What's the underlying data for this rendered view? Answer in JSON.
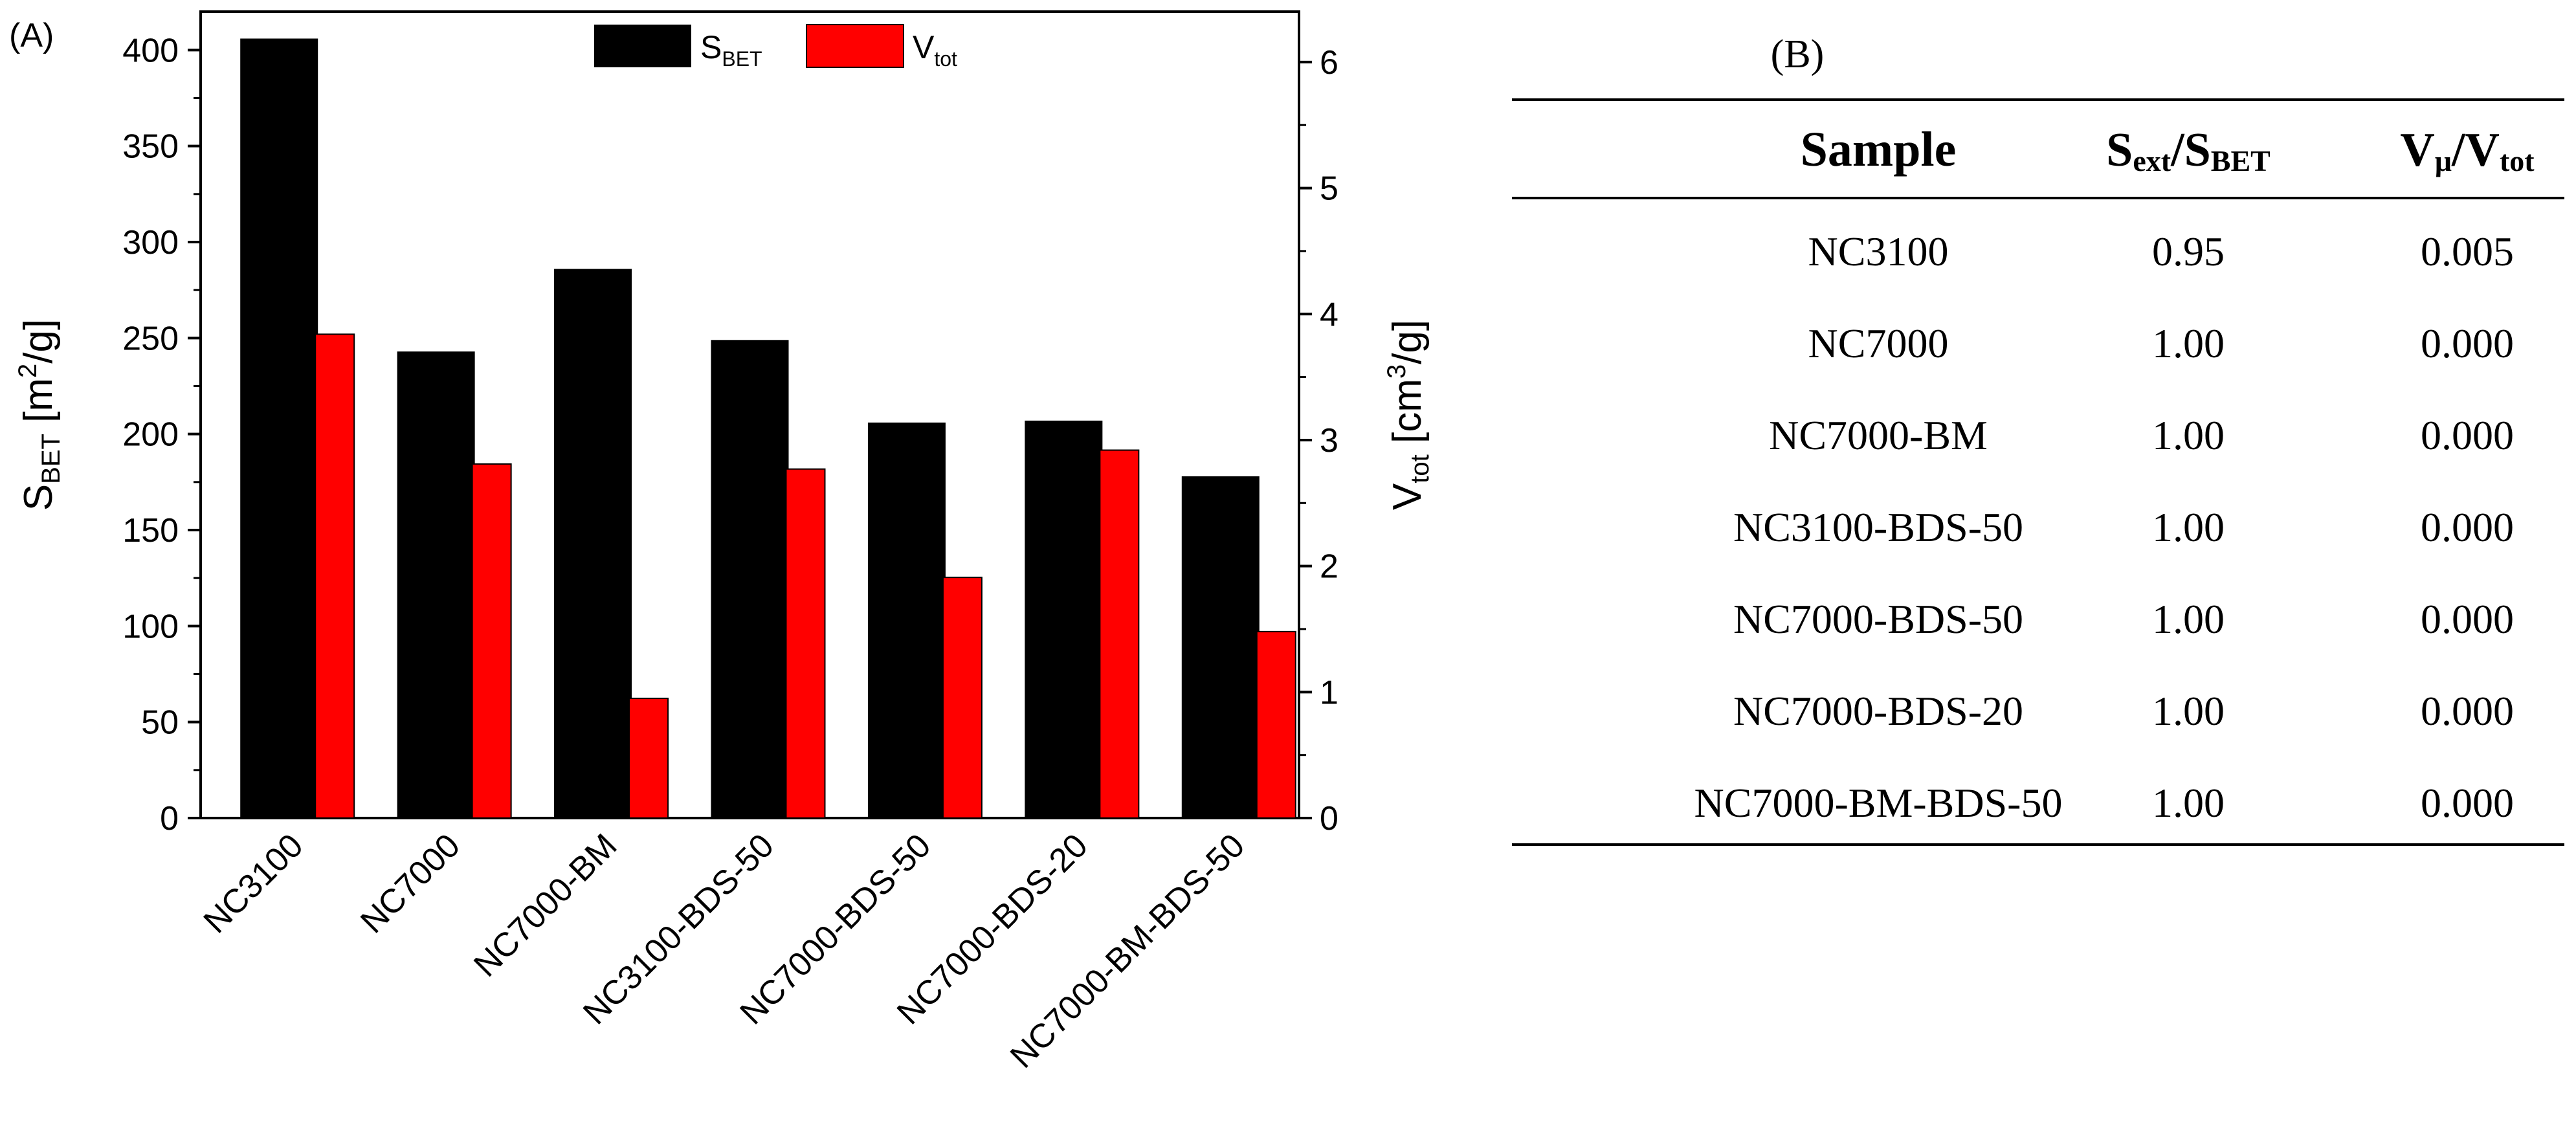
{
  "chart_data": {
    "type": "bar",
    "panel_label": "(A)",
    "categories": [
      "NC3100",
      "NC7000",
      "NC7000-BM",
      "NC3100-BDS-50",
      "NC7000-BDS-50",
      "NC7000-BDS-20",
      "NC7000-BM-BDS-50"
    ],
    "series": [
      {
        "name": "S_BET",
        "axis": "left",
        "color": "#000000",
        "values": [
          406,
          243,
          286,
          249,
          206,
          207,
          178
        ]
      },
      {
        "name": "V_tot",
        "axis": "right",
        "color": "#ff0000",
        "values": [
          3.84,
          2.81,
          0.95,
          2.77,
          1.91,
          2.92,
          1.48
        ]
      }
    ],
    "legend": [
      {
        "main": "S",
        "sub": "BET",
        "color": "#000000"
      },
      {
        "main": "V",
        "sub": "tot",
        "color": "#ff0000"
      }
    ],
    "legend_position": "top-center",
    "y_left": {
      "label_main": "S",
      "label_sub": "BET",
      "label_unit_pre": " [m",
      "label_sup": "2",
      "label_unit_post": "/g]",
      "lim": [
        0,
        420
      ],
      "ticks": [
        0,
        50,
        100,
        150,
        200,
        250,
        300,
        350,
        400
      ]
    },
    "y_right": {
      "label_main": "V",
      "label_sub": "tot",
      "label_unit_pre": " [cm",
      "label_sup": "3",
      "label_unit_post": "/g]",
      "lim": [
        0,
        6.4
      ],
      "ticks": [
        0,
        1,
        2,
        3,
        4,
        5,
        6
      ]
    }
  },
  "table": {
    "panel_label": "(B)",
    "headers": {
      "sample": "Sample",
      "ratio1_a": "S",
      "ratio1_a_sub": "ext",
      "ratio1_b": "/S",
      "ratio1_b_sub": "BET",
      "ratio2_a": "V",
      "ratio2_a_sub": "μ",
      "ratio2_b": "/V",
      "ratio2_b_sub": "tot"
    },
    "rows": [
      {
        "sample": "NC3100",
        "s_ratio": "0.95",
        "v_ratio": "0.005"
      },
      {
        "sample": "NC7000",
        "s_ratio": "1.00",
        "v_ratio": "0.000"
      },
      {
        "sample": "NC7000-BM",
        "s_ratio": "1.00",
        "v_ratio": "0.000"
      },
      {
        "sample": "NC3100-BDS-50",
        "s_ratio": "1.00",
        "v_ratio": "0.000"
      },
      {
        "sample": "NC7000-BDS-50",
        "s_ratio": "1.00",
        "v_ratio": "0.000"
      },
      {
        "sample": "NC7000-BDS-20",
        "s_ratio": "1.00",
        "v_ratio": "0.000"
      },
      {
        "sample": "NC7000-BM-BDS-50",
        "s_ratio": "1.00",
        "v_ratio": "0.000"
      }
    ]
  }
}
